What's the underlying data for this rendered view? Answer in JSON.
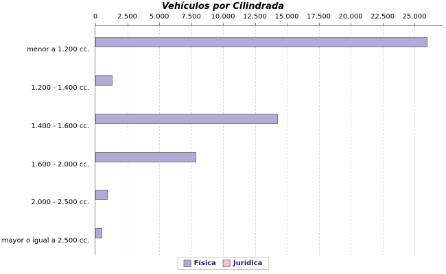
{
  "chart_data": {
    "type": "bar",
    "orientation": "horizontal",
    "title": "Vehículos por Cilindrada",
    "categories": [
      "menor a 1.200 cc.",
      "1.200 - 1.400 cc.",
      "1.400 - 1.600 cc.",
      "1.600 - 2.000 cc.",
      "2.000 - 2.500 cc.",
      "mayor o igual a 2.500 cc."
    ],
    "series": [
      {
        "name": "Física",
        "color": "#b4aad6",
        "values": [
          25900,
          1250,
          14200,
          7800,
          850,
          450
        ]
      },
      {
        "name": "Jurídica",
        "color": "#f7c6c6",
        "values": [
          0,
          0,
          0,
          0,
          0,
          0
        ]
      }
    ],
    "x_axis": {
      "tick_labels": [
        "0",
        "2.500",
        "5.000",
        "7.500",
        "10.000",
        "12.500",
        "15.000",
        "17.500",
        "20.000",
        "22.500",
        "25.000"
      ],
      "tick_values": [
        0,
        2500,
        5000,
        7500,
        10000,
        12500,
        15000,
        17500,
        20000,
        22500,
        25000
      ],
      "range": [
        0,
        27200
      ],
      "position": "top"
    },
    "grid": "vertical-dashed",
    "legend": {
      "position": "bottom",
      "entries": [
        "Física",
        "Jurídica"
      ]
    }
  },
  "colors": {
    "bar_border": "#7a7a7a",
    "axis": "#808080",
    "gridline": "#d9d9d9",
    "title_text": "#000000",
    "tick_text": "#000000",
    "category_text": "#000000",
    "legend_text": "#2d1069",
    "legend_border": "#cccccc",
    "background": "#ffffff"
  }
}
